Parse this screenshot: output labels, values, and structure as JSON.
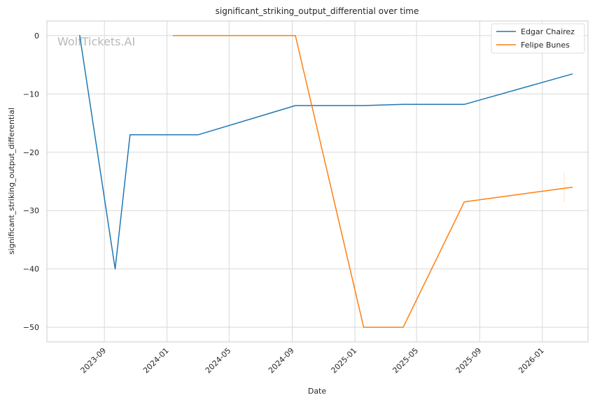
{
  "chart_data": {
    "type": "line",
    "title": "significant_striking_output_differential over time",
    "xlabel": "Date",
    "ylabel": "significant_striking_output_differential",
    "watermark": "WolfTickets.AI",
    "x_ticks": [
      "2023-09",
      "2024-01",
      "2024-05",
      "2024-09",
      "2025-01",
      "2025-05",
      "2025-09",
      "2026-01"
    ],
    "y_ticks": [
      0,
      -10,
      -20,
      -30,
      -40,
      -50
    ],
    "xlim": [
      "2023-05-12",
      "2026-03-31"
    ],
    "ylim": [
      -52.5,
      2.5
    ],
    "grid": true,
    "legend_position": "top-right",
    "series": [
      {
        "name": "Edgar Chairez",
        "color": "#1f77b4",
        "x": [
          "2023-07-15",
          "2023-09-22",
          "2023-10-21",
          "2024-03-02",
          "2024-09-07",
          "2025-01-18",
          "2025-04-05",
          "2025-08-02",
          "2026-02-28"
        ],
        "values": [
          0,
          -40,
          -17,
          -17,
          -12,
          -12,
          -11.8,
          -11.8,
          -6.6
        ]
      },
      {
        "name": "Felipe Bunes",
        "color": "#ff7f0e",
        "x": [
          "2024-01-13",
          "2024-09-07",
          "2025-01-18",
          "2025-04-05",
          "2025-08-02",
          "2026-02-28"
        ],
        "values": [
          0,
          0,
          -50,
          -50,
          -28.5,
          -26
        ]
      }
    ]
  }
}
